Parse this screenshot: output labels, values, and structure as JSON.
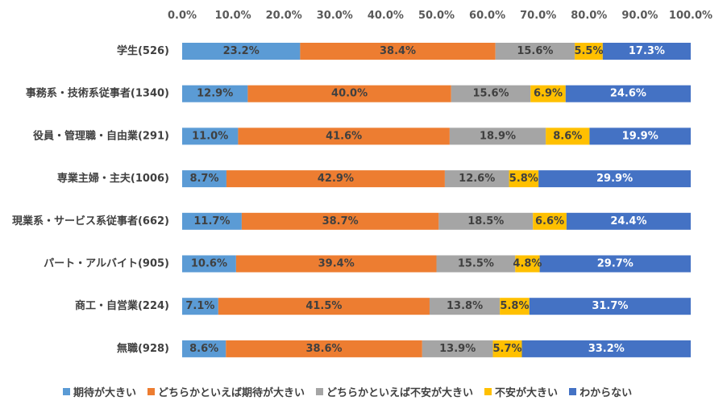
{
  "chart_data": {
    "type": "bar",
    "orientation": "horizontal",
    "stacked": "percent",
    "xlim": [
      0,
      100
    ],
    "x_ticks": [
      "0.0%",
      "10.0%",
      "20.0%",
      "30.0%",
      "40.0%",
      "50.0%",
      "60.0%",
      "70.0%",
      "80.0%",
      "90.0%",
      "100.0%"
    ],
    "grid": false,
    "legend_position": "bottom",
    "categories": [
      "学生(526)",
      "事務系・技術系従事者(1340)",
      "役員・管理職・自由業(291)",
      "専業主婦・主夫(1006)",
      "現業系・サービス系従事者(662)",
      "パート・アルバイト(905)",
      "商工・自営業(224)",
      "無職(928)"
    ],
    "series": [
      {
        "name": "期待が大きい",
        "color": "#5B9BD5",
        "label_color": "#404040",
        "values": [
          23.2,
          12.9,
          11.0,
          8.7,
          11.7,
          10.6,
          7.1,
          8.6
        ]
      },
      {
        "name": "どちらかといえば期待が大きい",
        "color": "#ED7D31",
        "label_color": "#404040",
        "values": [
          38.4,
          40.0,
          41.6,
          42.9,
          38.7,
          39.4,
          41.5,
          38.6
        ]
      },
      {
        "name": "どちらかといえば不安が大きい",
        "color": "#A5A5A5",
        "label_color": "#404040",
        "values": [
          15.6,
          15.6,
          18.9,
          12.6,
          18.5,
          15.5,
          13.8,
          13.9
        ]
      },
      {
        "name": "不安が大きい",
        "color": "#FFC000",
        "label_color": "#404040",
        "values": [
          5.5,
          6.9,
          8.6,
          5.8,
          6.6,
          4.8,
          5.8,
          5.7
        ]
      },
      {
        "name": "わからない",
        "color": "#4472C4",
        "label_color": "#ffffff",
        "values": [
          17.3,
          24.6,
          19.9,
          29.9,
          24.4,
          29.7,
          31.7,
          33.2
        ]
      }
    ]
  }
}
